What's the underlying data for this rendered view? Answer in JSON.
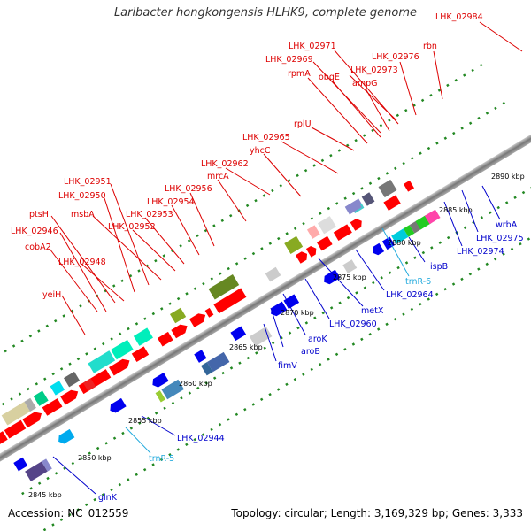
{
  "title": "Laribacter hongkongensis HLHK9, complete genome",
  "footer": {
    "accession": "Accession: NC_012559",
    "summary": "Topology: circular; Length: 3,169,329 bp; Genes: 3,333"
  },
  "colors": {
    "forward_label": "#dd0000",
    "reverse_label": "#0000cc",
    "trna_label": "#22aadd",
    "backbone": "#999999",
    "tick_dot": "#228822"
  },
  "ticks": [
    "2845 kbp",
    "2850 kbp",
    "2855 kbp",
    "2860 kbp",
    "2865 kbp",
    "2870 kbp",
    "2875 kbp",
    "2880 kbp",
    "2885 kbp",
    "2890 kbp"
  ],
  "forward_labels": [
    "LHK_02984",
    "rbn",
    "LHK_02976",
    "LHK_02971",
    "LHK_02969",
    "LHK_02973",
    "rpmA",
    "obgE",
    "ampG",
    "rplU",
    "LHK_02965",
    "yhcC",
    "LHK_02962",
    "mrcA",
    "LHK_02956",
    "LHK_02954",
    "LHK_02953",
    "LHK_02952",
    "LHK_02951",
    "LHK_02950",
    "msbA",
    "ptsH",
    "LHK_02946",
    "cobA2",
    "LHK_02948",
    "yeiH"
  ],
  "reverse_labels": [
    "wrbA",
    "LHK_02975",
    "LHK_02974",
    "ispB",
    "LHK_02964",
    "metX",
    "LHK_02960",
    "aroK",
    "aroB",
    "fimV",
    "LHK_02944",
    "glnK"
  ],
  "trna_labels": [
    "trnR-6",
    "trnR-5"
  ]
}
